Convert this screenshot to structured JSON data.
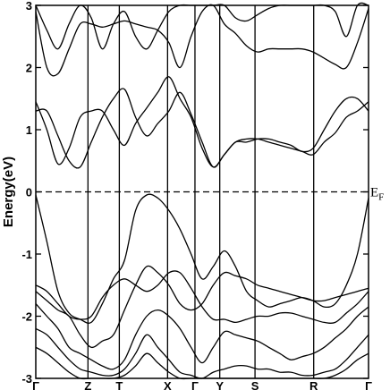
{
  "chart_data": {
    "type": "line",
    "title": "",
    "ylabel": "Energy(eV)",
    "xlabel": "",
    "ylim": [
      -3,
      3
    ],
    "yticks": [
      3,
      2,
      1,
      0,
      -1,
      -2,
      -3
    ],
    "kpoint_labels": [
      "Γ",
      "Z",
      "T",
      "X",
      "Γ",
      "Y",
      "S",
      "R",
      "Γ"
    ],
    "kpoint_positions": [
      0,
      1.538,
      2.462,
      3.885,
      4.692,
      5.423,
      6.462,
      8.192,
      9.808
    ],
    "fermi_level": {
      "value": 0,
      "label": "E",
      "subscript": "F",
      "style": "dashed"
    },
    "series": [
      {
        "values": [
          3.0,
          2.6,
          2.3,
          2.7,
          3.05,
          2.8,
          2.3,
          2.7,
          2.9,
          2.5,
          2.3,
          2.6,
          2.9,
          3.0,
          3.05,
          3.0,
          3.0,
          3.0,
          2.8,
          2.75,
          2.85,
          2.95,
          3.0,
          3.0,
          3.0,
          3.05,
          3.05,
          2.9,
          2.5,
          3.0,
          3.05
        ]
      },
      {
        "values": [
          2.9,
          2.0,
          1.9,
          2.3,
          2.7,
          2.7,
          2.65,
          2.7,
          2.75,
          2.7,
          2.65,
          2.6,
          2.4,
          2.0,
          2.5,
          2.9,
          3.05,
          2.7,
          2.55,
          2.35,
          2.25,
          2.3,
          2.3,
          2.3,
          2.3,
          2.25,
          2.15,
          2.05,
          2.0,
          2.4,
          2.95
        ]
      },
      {
        "values": [
          1.45,
          1.0,
          0.45,
          0.7,
          1.2,
          1.3,
          1.3,
          1.0,
          0.75,
          1.1,
          1.35,
          1.6,
          1.85,
          1.5,
          1.2,
          0.7,
          0.4,
          0.6,
          0.8,
          0.85,
          0.85,
          0.8,
          0.75,
          0.7,
          0.65,
          0.6,
          0.8,
          0.95,
          1.2,
          1.3,
          1.45
        ]
      },
      {
        "values": [
          1.3,
          1.3,
          0.9,
          0.5,
          0.4,
          0.8,
          1.2,
          1.5,
          1.65,
          1.2,
          0.9,
          1.1,
          1.3,
          1.6,
          1.25,
          0.8,
          0.4,
          0.6,
          0.8,
          0.8,
          0.85,
          0.85,
          0.8,
          0.75,
          0.65,
          0.7,
          1.0,
          1.3,
          1.5,
          1.5,
          1.3
        ]
      },
      {
        "values": [
          -0.05,
          -0.8,
          -1.6,
          -1.95,
          -2.05,
          -2.1,
          -1.8,
          -1.4,
          -1.1,
          -0.3,
          -0.05,
          -0.1,
          -0.3,
          -0.6,
          -1.0,
          -1.4,
          -1.2,
          -0.95,
          -1.2,
          -1.6,
          -1.75,
          -1.85,
          -1.8,
          -1.75,
          -1.7,
          -1.75,
          -1.85,
          -1.8,
          -1.5,
          -1.0,
          -0.1
        ]
      },
      {
        "values": [
          -1.5,
          -1.6,
          -1.8,
          -2.0,
          -2.05,
          -2.0,
          -1.7,
          -1.5,
          -1.4,
          -1.5,
          -1.6,
          -1.5,
          -1.3,
          -1.3,
          -1.55,
          -1.85,
          -2.05,
          -2.05,
          -2.1,
          -2.05,
          -2.0,
          -2.0,
          -1.95,
          -1.95,
          -2.0,
          -2.05,
          -2.1,
          -2.1,
          -1.95,
          -1.8,
          -1.6
        ]
      },
      {
        "values": [
          -1.6,
          -1.75,
          -1.9,
          -2.0,
          -2.3,
          -2.5,
          -2.4,
          -2.3,
          -1.9,
          -1.5,
          -1.2,
          -1.3,
          -1.5,
          -1.8,
          -1.9,
          -1.8,
          -1.5,
          -1.3,
          -1.35,
          -1.4,
          -1.5,
          -1.55,
          -1.6,
          -1.65,
          -1.7,
          -1.75,
          -1.75,
          -1.7,
          -1.65,
          -1.6,
          -1.55
        ]
      },
      {
        "values": [
          -1.8,
          -2.0,
          -2.2,
          -2.5,
          -2.6,
          -2.7,
          -2.8,
          -2.85,
          -2.7,
          -2.3,
          -2.0,
          -1.9,
          -2.0,
          -2.2,
          -2.5,
          -2.75,
          -2.5,
          -2.25,
          -2.3,
          -2.35,
          -2.4,
          -2.5,
          -2.6,
          -2.7,
          -2.65,
          -2.6,
          -2.5,
          -2.35,
          -2.2,
          -2.0,
          -1.85
        ]
      },
      {
        "values": [
          -2.2,
          -2.3,
          -2.5,
          -2.7,
          -2.85,
          -2.9,
          -2.95,
          -2.95,
          -2.85,
          -2.6,
          -2.3,
          -2.5,
          -2.7,
          -2.9,
          -2.95,
          -3.0,
          -2.9,
          -2.85,
          -2.8,
          -2.8,
          -2.85,
          -2.85,
          -2.9,
          -2.9,
          -2.95,
          -2.95,
          -2.9,
          -2.85,
          -2.7,
          -2.5,
          -2.3
        ]
      },
      {
        "values": [
          -2.5,
          -2.6,
          -2.75,
          -2.9,
          -3.0,
          -3.0,
          -3.0,
          -3.0,
          -2.95,
          -2.8,
          -2.6,
          -2.75,
          -2.9,
          -3.0,
          -3.0,
          -3.0,
          -3.0,
          -3.0,
          -3.0,
          -3.0,
          -3.0,
          -3.0,
          -3.0,
          -3.0,
          -3.0,
          -3.0,
          -3.0,
          -2.95,
          -2.85,
          -2.7,
          -2.6
        ]
      }
    ]
  }
}
